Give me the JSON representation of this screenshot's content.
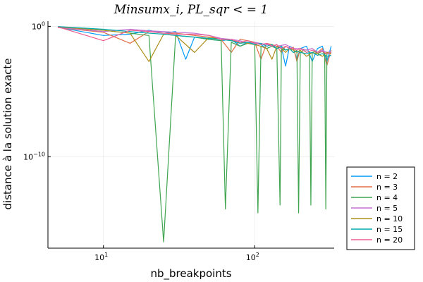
{
  "chart_data": {
    "type": "line",
    "title": "Minsumx_i, PL_sqr < = 1",
    "xlabel": "nb_breakpoints",
    "ylabel": "distance à la solution exacte",
    "xscale": "log",
    "yscale": "log",
    "xlim": [
      4.3,
      335
    ],
    "ylim": [
      1e-17,
      2.5
    ],
    "x_ticks": [
      {
        "value": 10,
        "base": "10",
        "exp": "1"
      },
      {
        "value": 100,
        "base": "10",
        "exp": "2"
      }
    ],
    "y_ticks": [
      {
        "value": 1,
        "base": "10",
        "exp": "0"
      },
      {
        "value": 1e-10,
        "base": "10",
        "exp": "−10"
      }
    ],
    "grid": true,
    "legend_position": "outside-bottom-right",
    "series": [
      {
        "name": "n = 2",
        "color": "#009AFA",
        "x": [
          5,
          10,
          15,
          20,
          25,
          30,
          35,
          40,
          50,
          60,
          70,
          80,
          90,
          100,
          110,
          120,
          130,
          140,
          150,
          160,
          170,
          180,
          190,
          200,
          220,
          240,
          260,
          280,
          300,
          320
        ],
        "y": [
          0.85,
          0.2,
          0.25,
          0.5,
          0.3,
          0.4,
          0.003,
          0.15,
          0.1,
          0.08,
          0.1,
          0.03,
          0.06,
          0.05,
          0.04,
          0.02,
          0.03,
          0.02,
          0.025,
          0.0009,
          0.03,
          0.02,
          0.003,
          0.02,
          0.03,
          0.002,
          0.02,
          0.03,
          0.002,
          0.03
        ]
      },
      {
        "name": "n = 3",
        "color": "#E36F47",
        "x": [
          5,
          10,
          15,
          20,
          25,
          30,
          40,
          50,
          60,
          70,
          80,
          90,
          100,
          110,
          120,
          130,
          140,
          150,
          160,
          170,
          180,
          190,
          200,
          220,
          240,
          260,
          280,
          300,
          320
        ],
        "y": [
          0.8,
          0.35,
          0.05,
          0.4,
          0.3,
          0.3,
          0.2,
          0.15,
          0.1,
          0.01,
          0.1,
          0.08,
          0.06,
          0.003,
          0.05,
          0.04,
          0.03,
          0.01,
          0.03,
          0.02,
          0.025,
          0.002,
          0.02,
          0.015,
          0.02,
          0.01,
          0.02,
          0.001,
          0.015
        ]
      },
      {
        "name": "n = 4",
        "color": "#3EA44E",
        "x": [
          5,
          10,
          15,
          20,
          25,
          30,
          40,
          50,
          60,
          64,
          70,
          80,
          90,
          100,
          105,
          110,
          120,
          130,
          140,
          147,
          150,
          160,
          170,
          180,
          190,
          195,
          200,
          210,
          220,
          230,
          235,
          240,
          250,
          260,
          270,
          280,
          290,
          295,
          300,
          310,
          320
        ],
        "y": [
          0.9,
          0.5,
          0.3,
          0.2,
          3e-17,
          0.2,
          0.15,
          0.1,
          0.08,
          1e-14,
          0.06,
          0.03,
          0.05,
          0.04,
          5e-15,
          0.03,
          0.02,
          0.03,
          0.02,
          2e-14,
          0.02,
          0.015,
          0.02,
          0.01,
          0.015,
          5e-15,
          0.01,
          0.015,
          0.01,
          0.012,
          2e-14,
          0.01,
          0.012,
          0.008,
          0.01,
          0.012,
          0.008,
          1e-14,
          0.01,
          0.008,
          0.01
        ]
      },
      {
        "name": "n = 5",
        "color": "#C271D2",
        "x": [
          5,
          10,
          15,
          20,
          25,
          30,
          40,
          50,
          60,
          70,
          80,
          90,
          100,
          120,
          140,
          160,
          180,
          200,
          220,
          240,
          260,
          280,
          300,
          320
        ],
        "y": [
          0.85,
          0.4,
          0.6,
          0.45,
          0.4,
          0.35,
          0.3,
          0.2,
          0.12,
          0.1,
          0.08,
          0.05,
          0.06,
          0.04,
          0.03,
          0.04,
          0.02,
          0.02,
          0.015,
          0.02,
          0.01,
          0.015,
          0.01,
          0.012
        ]
      },
      {
        "name": "n = 10",
        "color": "#AC8D18",
        "x": [
          5,
          10,
          15,
          20,
          25,
          30,
          40,
          50,
          60,
          70,
          80,
          90,
          100,
          110,
          120,
          130,
          140,
          150,
          160,
          170,
          180,
          190,
          200,
          220,
          240,
          260,
          280,
          300,
          320
        ],
        "y": [
          0.9,
          0.5,
          0.3,
          0.002,
          0.25,
          0.2,
          0.01,
          0.15,
          0.1,
          0.08,
          0.06,
          0.05,
          0.04,
          0.03,
          0.02,
          0.003,
          0.03,
          0.02,
          0.01,
          0.02,
          0.015,
          0.01,
          0.015,
          0.005,
          0.01,
          0.008,
          0.005,
          0.01,
          0.008
        ]
      },
      {
        "name": "n = 15",
        "color": "#00A9AD",
        "x": [
          5,
          10,
          15,
          20,
          25,
          30,
          40,
          50,
          60,
          70,
          80,
          90,
          100,
          110,
          120,
          130,
          140,
          150,
          160,
          170,
          180,
          190,
          200,
          220,
          240,
          260,
          280,
          300,
          320
        ],
        "y": [
          0.95,
          0.6,
          0.4,
          0.3,
          0.25,
          0.2,
          0.15,
          0.12,
          0.1,
          0.08,
          0.05,
          0.06,
          0.04,
          0.05,
          0.03,
          0.04,
          0.02,
          0.03,
          0.015,
          0.02,
          0.01,
          0.012,
          0.01,
          0.008,
          0.01,
          0.006,
          0.008,
          0.005,
          0.006
        ]
      },
      {
        "name": "n = 20",
        "color": "#ED5D92",
        "x": [
          5,
          10,
          15,
          20,
          25,
          30,
          40,
          50,
          60,
          70,
          80,
          90,
          100,
          110,
          120,
          130,
          140,
          150,
          160,
          170,
          180,
          190,
          200,
          220,
          240,
          260,
          280,
          300,
          320
        ],
        "y": [
          0.9,
          0.08,
          0.5,
          0.4,
          0.3,
          0.25,
          0.25,
          0.2,
          0.1,
          0.1,
          0.06,
          0.08,
          0.05,
          0.04,
          0.05,
          0.03,
          0.04,
          0.02,
          0.03,
          0.02,
          0.02,
          0.015,
          0.02,
          0.01,
          0.015,
          0.01,
          0.012,
          0.008,
          0.01
        ]
      }
    ]
  }
}
